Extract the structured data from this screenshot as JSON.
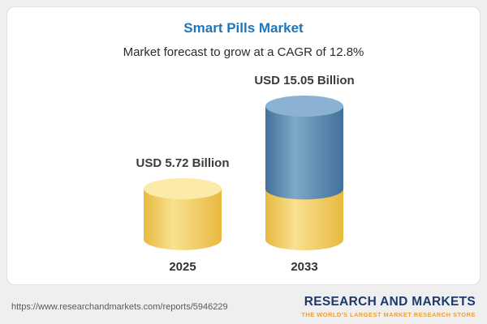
{
  "chart_data": {
    "type": "bar",
    "style": "3d-cylinder-stacked",
    "title": "Smart Pills Market",
    "subtitle": "Market forecast to grow at a CAGR of 12.8%",
    "cagr": "12.8%",
    "categories": [
      "2025",
      "2033"
    ],
    "values": [
      5.72,
      15.05
    ],
    "value_labels": [
      "USD 5.72 Billion",
      "USD 15.05 Billion"
    ],
    "unit": "USD Billion",
    "ylim": [
      0,
      15.05
    ],
    "grid": false,
    "legend": false,
    "colors": {
      "title_accent": "#1c76bc",
      "bar_2025_body": "#f0cc62",
      "bar_2025_top": "#fceaa8",
      "bar_2033_growth_body": "#5b89b0",
      "bar_2033_growth_top": "#8bb2d2",
      "bar_2033_base": "#f0cc62"
    }
  },
  "footer": {
    "url": "https://www.researchandmarkets.com/reports/5946229",
    "brand_name": "RESEARCH AND MARKETS",
    "brand_tagline": "THE WORLD'S LARGEST MARKET RESEARCH STORE"
  }
}
